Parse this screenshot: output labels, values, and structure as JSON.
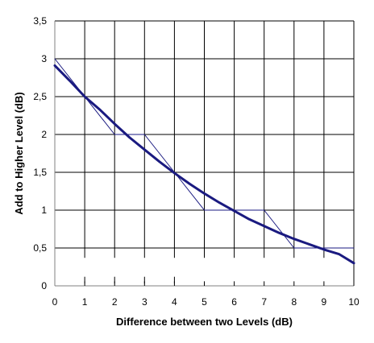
{
  "chart_data": {
    "type": "line",
    "title": "",
    "xlabel": "Difference between two Levels (dB)",
    "ylabel": "Add to Higher Level (dB)",
    "xlim": [
      0,
      10
    ],
    "ylim": [
      0,
      3.5
    ],
    "x_ticks": [
      "0",
      "1",
      "2",
      "3",
      "4",
      "5",
      "6",
      "7",
      "8",
      "9",
      "10"
    ],
    "y_ticks": [
      "0",
      "0,5",
      "1",
      "1,5",
      "2",
      "2,5",
      "3",
      "3,5"
    ],
    "grid": true,
    "series": [
      {
        "style": "thick-curve",
        "color": "#1a1a80",
        "x": [
          0,
          0.5,
          1,
          1.5,
          2,
          2.5,
          3,
          3.5,
          4,
          4.5,
          5,
          5.5,
          6,
          6.5,
          7,
          7.5,
          8,
          8.5,
          9,
          9.5,
          10
        ],
        "y": [
          2.91,
          2.71,
          2.5,
          2.33,
          2.14,
          1.96,
          1.8,
          1.64,
          1.49,
          1.35,
          1.22,
          1.1,
          0.99,
          0.88,
          0.79,
          0.7,
          0.62,
          0.55,
          0.48,
          0.42,
          0.3
        ]
      },
      {
        "style": "thin-step",
        "color": "#1a1a80",
        "x": [
          0,
          1,
          2,
          3,
          4,
          5,
          7,
          8,
          10
        ],
        "y": [
          3,
          2.5,
          2,
          2,
          1.5,
          1,
          1,
          0.5,
          0.5
        ]
      }
    ],
    "colors": {
      "grid": "#000000",
      "axis": "#808080",
      "curve": "#1a1a80"
    }
  }
}
